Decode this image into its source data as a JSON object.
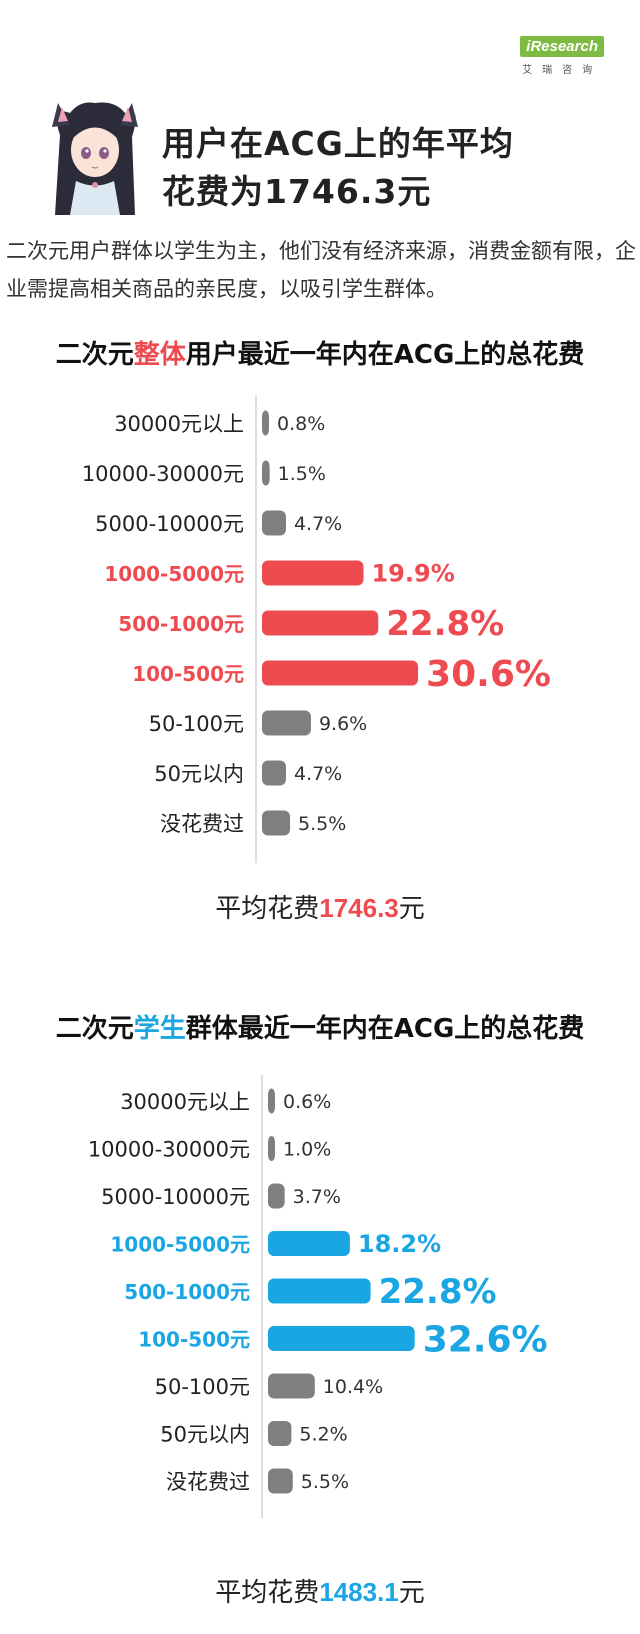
{
  "logo": {
    "brand": "iResearch",
    "sub": "艾瑞咨询"
  },
  "headline": {
    "line1": "用户在ACG上的年平均",
    "line2": "花费为1746.3元"
  },
  "intro": "二次元用户群体以学生为主，他们没有经济来源，消费金额有限，企业需提高相关商品的亲民度，以吸引学生群体。",
  "section1": {
    "title_pre": "二次元",
    "title_hl": "整体",
    "title_post": "用户最近一年内在ACG上的总花费",
    "avg_label": "平均花费",
    "avg_value": "1746.3",
    "avg_unit": "元"
  },
  "section2": {
    "title_pre": "二次元",
    "title_hl": "学生",
    "title_post": "群体最近一年内在ACG上的总花费",
    "avg_label": "平均花费",
    "avg_value": "1483.1",
    "avg_unit": "元"
  },
  "colors": {
    "gray": "#7f7f82",
    "red": "#ee4b51",
    "blue": "#1aa6e3"
  },
  "chart_data": [
    {
      "type": "bar",
      "orientation": "horizontal",
      "title": "二次元整体用户最近一年内在ACG上的总花费",
      "categories": [
        "30000元以上",
        "10000-30000元",
        "5000-10000元",
        "1000-5000元",
        "500-1000元",
        "100-500元",
        "50-100元",
        "50元以内",
        "没花费过"
      ],
      "values": [
        0.8,
        1.5,
        4.7,
        19.9,
        22.8,
        30.6,
        9.6,
        4.7,
        5.5
      ],
      "labels": [
        "0.8%",
        "1.5%",
        "4.7%",
        "19.9%",
        "22.8%",
        "30.6%",
        "9.6%",
        "4.7%",
        "5.5%"
      ],
      "highlight": [
        false,
        false,
        false,
        true,
        true,
        true,
        false,
        false,
        false
      ],
      "unit": "%",
      "highlight_color": "#ee4b51"
    },
    {
      "type": "bar",
      "orientation": "horizontal",
      "title": "二次元学生群体最近一年内在ACG上的总花费",
      "categories": [
        "30000元以上",
        "10000-30000元",
        "5000-10000元",
        "1000-5000元",
        "500-1000元",
        "100-500元",
        "50-100元",
        "50元以内",
        "没花费过"
      ],
      "values": [
        0.6,
        1.0,
        3.7,
        18.2,
        22.8,
        32.6,
        10.4,
        5.2,
        5.5
      ],
      "labels": [
        "0.6%",
        "1.0%",
        "3.7%",
        "18.2%",
        "22.8%",
        "32.6%",
        "10.4%",
        "5.2%",
        "5.5%"
      ],
      "highlight": [
        false,
        false,
        false,
        true,
        true,
        true,
        false,
        false,
        false
      ],
      "unit": "%",
      "highlight_color": "#1aa6e3"
    }
  ]
}
